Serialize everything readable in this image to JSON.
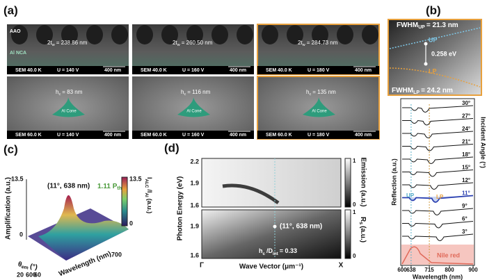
{
  "panel_a": {
    "label": "(a)",
    "layer_labels": [
      "AAO",
      "Al NCA"
    ],
    "top_row": [
      {
        "thickness": [
          "2t",
          "w",
          "= 238.86 nm"
        ],
        "magnification": "SEM 40.0 K",
        "voltage": "U = 140 V",
        "scale": "400 nm"
      },
      {
        "thickness": [
          "2t",
          "w",
          "= 260.50 nm"
        ],
        "magnification": "SEM 40.0 K",
        "voltage": "U = 160 V",
        "scale": "400 nm"
      },
      {
        "thickness": [
          "2t",
          "w",
          "= 284.73 nm"
        ],
        "magnification": "SEM 40.0 K",
        "voltage": "U = 180 V",
        "scale": "400 nm"
      }
    ],
    "bottom_row": [
      {
        "height": [
          "h",
          "c",
          "= 83 nm"
        ],
        "cone": "Al Cone",
        "magnification": "SEM 60.0 K",
        "voltage": "U = 140 V",
        "scale": "400 nm"
      },
      {
        "height": [
          "h",
          "c",
          "= 116 nm"
        ],
        "cone": "Al Cone",
        "magnification": "SEM 60.0 K",
        "voltage": "U = 160 V",
        "scale": "400 nm"
      },
      {
        "height": [
          "h",
          "c",
          "= 135 nm"
        ],
        "cone": "Al Cone",
        "magnification": "SEM 60.0 K",
        "voltage": "U = 180 V",
        "scale": "400 nm"
      }
    ]
  },
  "panel_b": {
    "label": "(b)",
    "fwhm_up": [
      "FWHM",
      "UP",
      "= 21.3 nm"
    ],
    "up": "UP",
    "splitting": "0.258 eV",
    "lp": "LP",
    "fwhm_lp": [
      "FWHM",
      "LP",
      "= 24.2 nm"
    ],
    "y_label": "Reflection (a.u.)",
    "x_label": "Wavelength (nm)",
    "x_ticks": [
      "600",
      "638",
      "715",
      "800",
      "900"
    ],
    "side_label": "Incident Angle (°)",
    "angles": [
      "30°",
      "27°",
      "24°",
      "21°",
      "18°",
      "15°",
      "12°",
      "11°",
      "9°",
      "6°",
      "3°"
    ],
    "curve_up": "UP",
    "curve_lp": "LP",
    "reference": "Nile red"
  },
  "panel_c": {
    "label": "(c)",
    "z_label": "Amplification (a.u.)",
    "z_ticks": [
      "13.5",
      "0"
    ],
    "peak": "(11°, 638 nm)",
    "power": [
      "1.11 P",
      "th"
    ],
    "colorbar_ticks": [
      "13.5",
      "0"
    ],
    "colorbar_label": [
      "I",
      "ALC",
      "/I",
      "Al",
      "(a.u.)"
    ],
    "angle_label": [
      "θ",
      "em",
      "(°)"
    ],
    "angle_ticks": [
      "20",
      "60"
    ],
    "wavelength_ticks": [
      "600",
      "700"
    ],
    "wavelength_label": "Wavelength (nm)"
  },
  "panel_d": {
    "label": "(d)",
    "y_label": "Photon Energy (eV)",
    "top_ticks": [
      "2.2",
      "1.9",
      "1.6"
    ],
    "bottom_ticks": [
      "1.9",
      "1.6"
    ],
    "emission_ticks": [
      "1",
      "0"
    ],
    "emission_label": "Emission (a.u.)",
    "reflection_ticks": [
      "1",
      "0"
    ],
    "reflection_label": [
      "R",
      "s",
      "(a.u.)"
    ],
    "point": "(11°, 638 nm)",
    "ratio": [
      "h",
      "c",
      "/D",
      "int",
      "= 0.33"
    ],
    "x_start": "Γ",
    "x_end": "X",
    "x_label": "Wave Vector (μm⁻¹)"
  }
}
